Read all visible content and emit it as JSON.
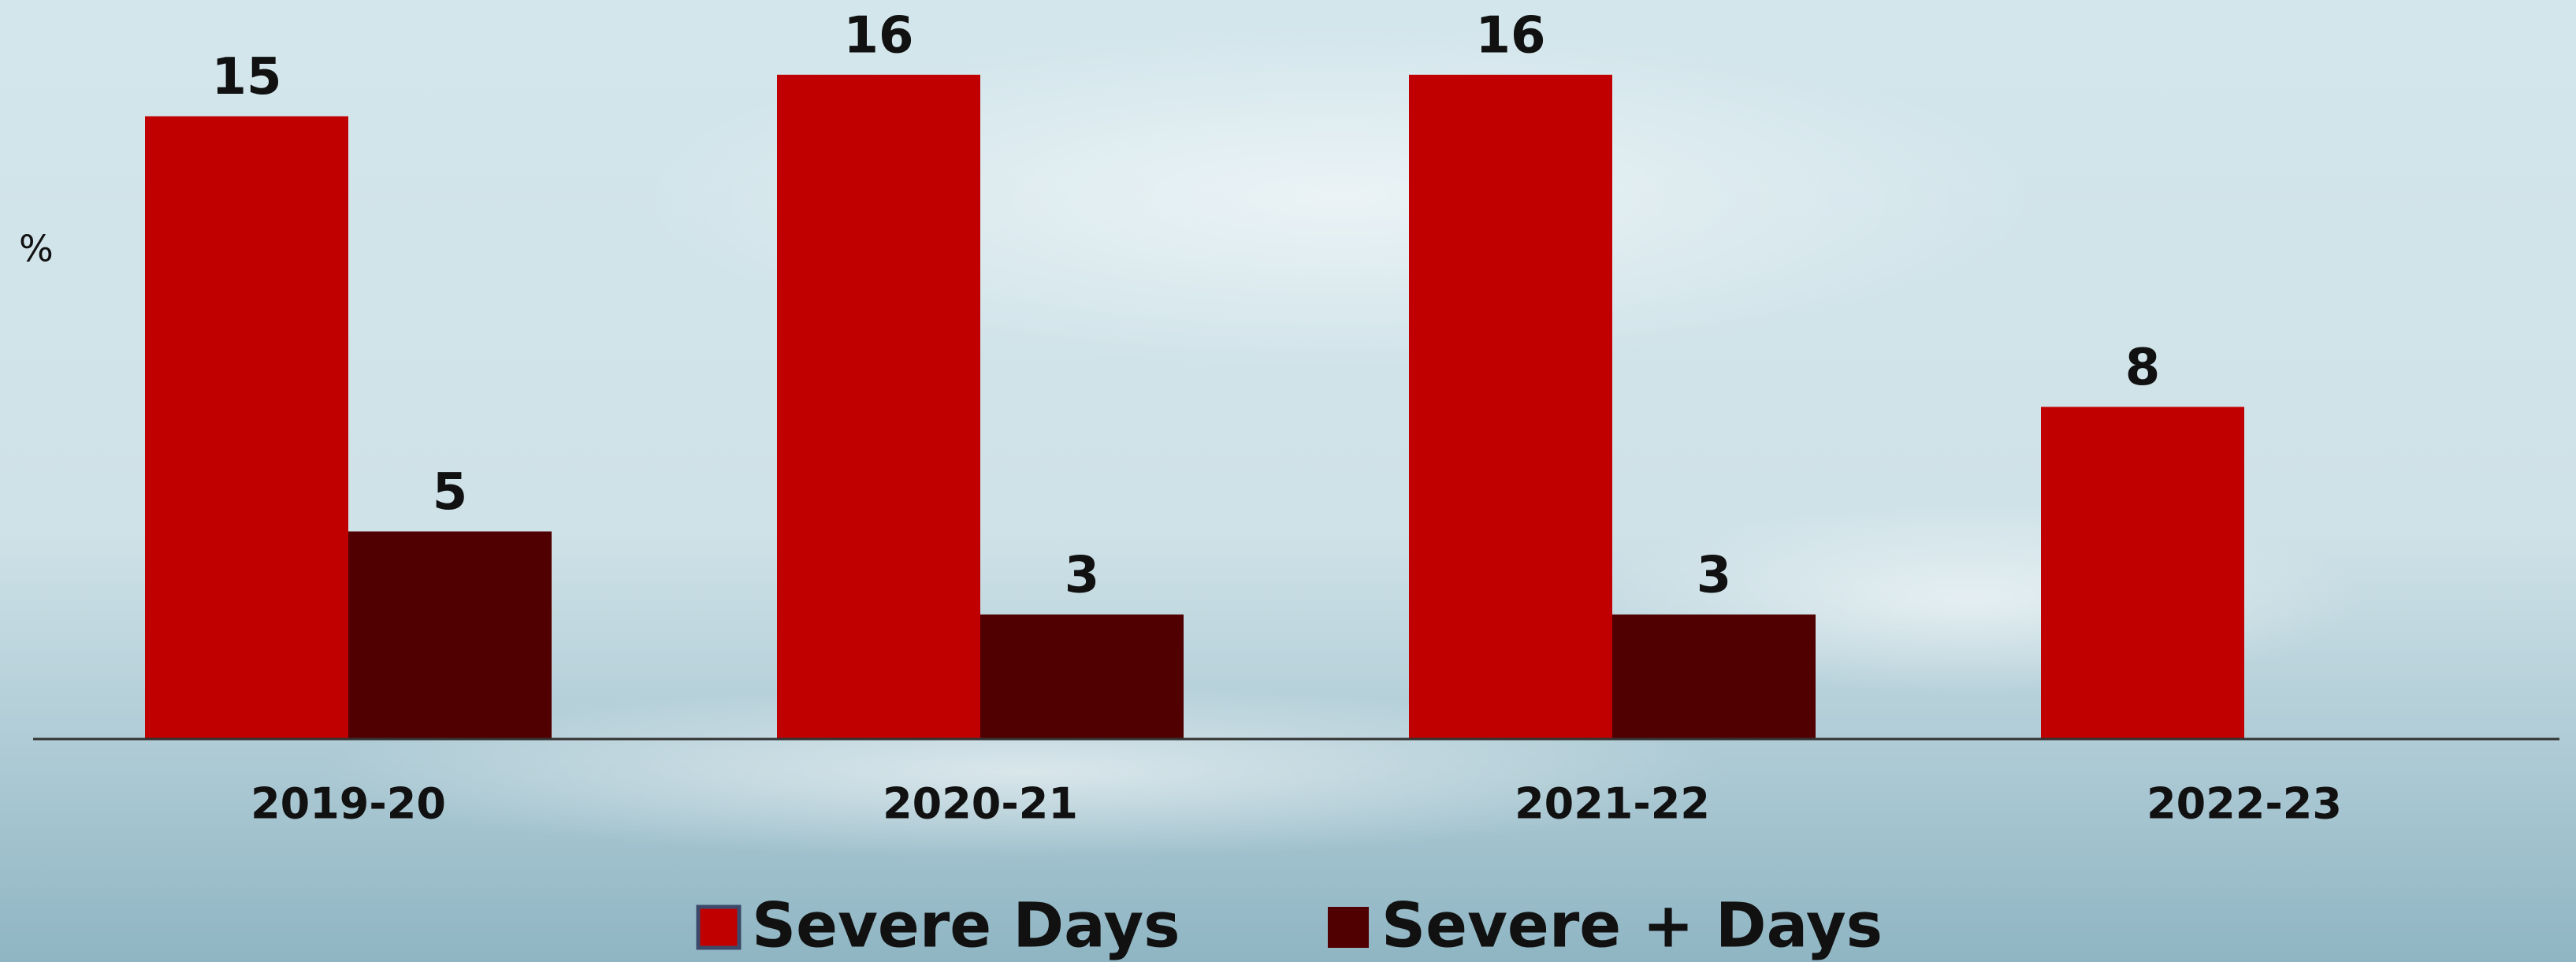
{
  "chart_data": {
    "type": "bar",
    "y_label": "%",
    "categories": [
      "2019-20",
      "2020-21",
      "2021-22",
      "2022-23"
    ],
    "series": [
      {
        "name": "Severe Days",
        "color": "#c00000",
        "values": [
          15,
          16,
          16,
          8
        ]
      },
      {
        "name": "Severe + Days",
        "color": "#500000",
        "values": [
          5,
          3,
          3,
          null
        ]
      }
    ],
    "ylim": [
      0,
      17.8
    ],
    "grid": false,
    "legend": "bottom"
  }
}
